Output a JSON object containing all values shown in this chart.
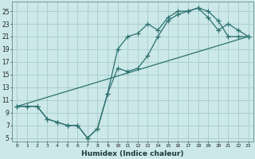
{
  "xlabel": "Humidex (Indice chaleur)",
  "bg_color": "#cce8e8",
  "grid_color": "#aacfcf",
  "line_color": "#2d7070",
  "xlim": [
    -0.5,
    23.5
  ],
  "ylim": [
    4.5,
    26.5
  ],
  "xticks": [
    0,
    1,
    2,
    3,
    4,
    5,
    6,
    7,
    8,
    9,
    10,
    11,
    12,
    13,
    14,
    15,
    16,
    17,
    18,
    19,
    20,
    21,
    22,
    23
  ],
  "yticks": [
    5,
    7,
    9,
    11,
    13,
    15,
    17,
    19,
    21,
    23,
    25
  ],
  "line1_x": [
    0,
    1,
    2,
    3,
    4,
    5,
    6,
    7,
    8,
    9,
    10,
    11,
    12,
    13,
    14,
    15,
    16,
    17,
    18,
    19,
    20,
    21,
    22,
    23
  ],
  "line1_y": [
    10,
    10,
    10,
    8,
    7.5,
    7,
    7,
    5,
    6.5,
    12,
    19,
    21,
    21.5,
    23,
    22,
    24,
    25,
    25,
    25.5,
    24,
    22,
    23,
    22,
    21
  ],
  "line2_x": [
    0,
    1,
    2,
    3,
    4,
    5,
    6,
    7,
    8,
    9,
    10,
    11,
    12,
    13,
    14,
    15,
    16,
    17,
    18,
    19,
    20,
    21,
    22,
    23
  ],
  "line2_y": [
    10,
    10,
    10,
    8,
    7.5,
    7,
    7,
    5,
    6.5,
    12,
    16,
    15.5,
    16,
    18,
    21,
    23.5,
    24.5,
    25,
    25.5,
    25,
    23.5,
    21,
    21,
    21
  ],
  "line3_x": [
    0,
    23
  ],
  "line3_y": [
    10,
    21
  ]
}
